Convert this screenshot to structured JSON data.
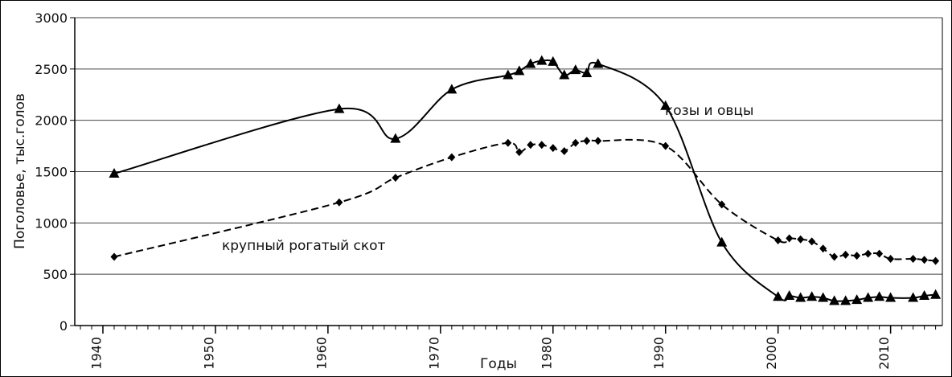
{
  "chart_data": {
    "type": "line",
    "x_label": "Годы",
    "y_label": "Поголовье, тыс.голов",
    "xlim": [
      1937.5,
      2014.6
    ],
    "xticks": [
      1940,
      1950,
      1960,
      1970,
      1980,
      1990,
      2000,
      2010
    ],
    "ylim": [
      0,
      3000
    ],
    "yticks": [
      0,
      500,
      1000,
      1500,
      2000,
      2500,
      3000
    ],
    "grid": true,
    "x": [
      1941,
      1961,
      1966,
      1971,
      1976,
      1977,
      1978,
      1979,
      1980,
      1981,
      1982,
      1983,
      1984,
      1990,
      1995,
      2000,
      2001,
      2002,
      2003,
      2004,
      2005,
      2006,
      2007,
      2008,
      2009,
      2010,
      2012,
      2013,
      2014
    ],
    "series": [
      {
        "name": "козы и овцы",
        "color": "#000000",
        "line_style": "solid",
        "marker": "triangle",
        "values": [
          1480,
          2110,
          1820,
          2300,
          2440,
          2480,
          2550,
          2580,
          2570,
          2440,
          2490,
          2460,
          2550,
          2140,
          810,
          280,
          290,
          270,
          280,
          270,
          240,
          240,
          250,
          270,
          280,
          270,
          270,
          290,
          300
        ]
      },
      {
        "name": "крупный рогатый скот",
        "color": "#000000",
        "line_style": "dashed",
        "marker": "diamond",
        "values": [
          670,
          1200,
          1440,
          1640,
          1780,
          1690,
          1760,
          1760,
          1730,
          1700,
          1780,
          1800,
          1800,
          1750,
          1180,
          830,
          850,
          840,
          820,
          750,
          670,
          690,
          680,
          700,
          700,
          650,
          650,
          640,
          630
        ]
      }
    ]
  }
}
